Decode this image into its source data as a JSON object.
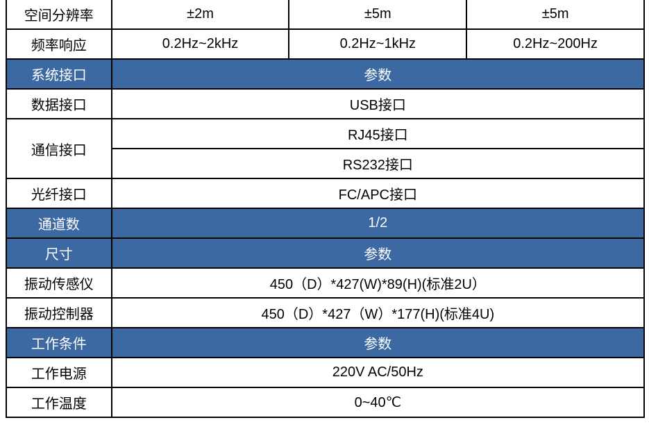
{
  "colors": {
    "header_bg": "#3d69a3",
    "header_text": "#ffffff",
    "cell_bg": "#ffffff",
    "cell_text": "#000000",
    "border": "#000000"
  },
  "rows": {
    "r1": {
      "label": "空间分辨率",
      "c2": "±2m",
      "c3": "±5m",
      "c4": "±5m"
    },
    "r2": {
      "label": "频率响应",
      "c2": "0.2Hz~2kHz",
      "c3": "0.2Hz~1kHz",
      "c4": "0.2Hz~200Hz"
    },
    "r3": {
      "label": "系统接口",
      "value": "参数"
    },
    "r4": {
      "label": "数据接口",
      "value": "USB接口"
    },
    "r5": {
      "label": "通信接口",
      "v1": "RJ45接口",
      "v2": "RS232接口"
    },
    "r6": {
      "label": "光纤接口",
      "value": "FC/APC接口"
    },
    "r7": {
      "label": "通道数",
      "value": "1/2"
    },
    "r8": {
      "label": "尺寸",
      "value": "参数"
    },
    "r9": {
      "label": "振动传感仪",
      "value": "450（D）*427(W)*89(H)(标准2U）"
    },
    "r10": {
      "label": "振动控制器",
      "value": "450（D）*427（W）*177(H)(标准4U)"
    },
    "r11": {
      "label": "工作条件",
      "value": "参数"
    },
    "r12": {
      "label": "工作电源",
      "value": "220V AC/50Hz"
    },
    "r13": {
      "label": "工作温度",
      "value": "0~40℃"
    }
  }
}
